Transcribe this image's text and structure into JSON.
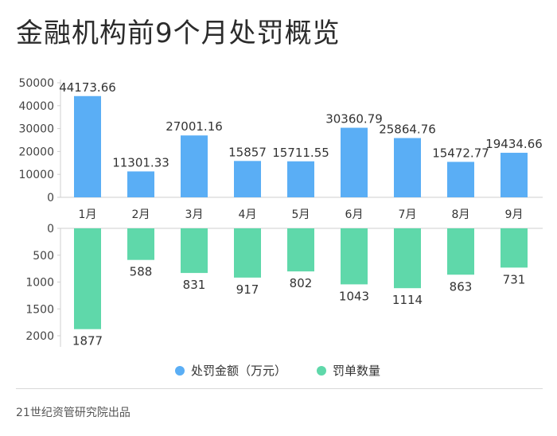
{
  "title": "金融机构前9个月处罚概览",
  "source": "21世纪资管研究院出品",
  "chart_data": [
    {
      "type": "bar",
      "position": "top",
      "categories": [
        "1月",
        "2月",
        "3月",
        "4月",
        "5月",
        "6月",
        "7月",
        "8月",
        "9月"
      ],
      "series": [
        {
          "name": "处罚金额（万元）",
          "color": "#5aaef5",
          "values": [
            44173.66,
            11301.33,
            27001.16,
            15857,
            15711.55,
            30360.79,
            25864.76,
            15472.77,
            19434.66
          ],
          "value_labels": [
            "44173.66",
            "11301.33",
            "27001.16",
            "15857",
            "15711.55",
            "30360.79",
            "25864.76",
            "15472.77",
            "19434.66"
          ]
        }
      ],
      "ylim": [
        0,
        50000
      ],
      "yticks": [
        0,
        10000,
        20000,
        30000,
        40000,
        50000
      ],
      "ytick_labels": [
        "0",
        "10000",
        "20000",
        "30000",
        "40000",
        "50000"
      ]
    },
    {
      "type": "bar",
      "position": "bottom",
      "orientation": "downward",
      "categories": [
        "1月",
        "2月",
        "3月",
        "4月",
        "5月",
        "6月",
        "7月",
        "8月",
        "9月"
      ],
      "series": [
        {
          "name": "罚单数量",
          "color": "#5fd8aa",
          "values": [
            1877,
            588,
            831,
            917,
            802,
            1043,
            1114,
            863,
            731
          ],
          "value_labels": [
            "1877",
            "588",
            "831",
            "917",
            "802",
            "1043",
            "1114",
            "863",
            "731"
          ]
        }
      ],
      "ylim": [
        0,
        2000
      ],
      "yticks": [
        0,
        500,
        1000,
        1500,
        2000
      ],
      "ytick_labels": [
        "0",
        "500",
        "1000",
        "1500",
        "2000"
      ]
    }
  ],
  "legend": {
    "placement": "bottom-center",
    "items": [
      {
        "label": "处罚金额（万元）",
        "color": "#5aaef5",
        "icon": "circle-icon"
      },
      {
        "label": "罚单数量",
        "color": "#5fd8aa",
        "icon": "circle-icon"
      }
    ]
  }
}
